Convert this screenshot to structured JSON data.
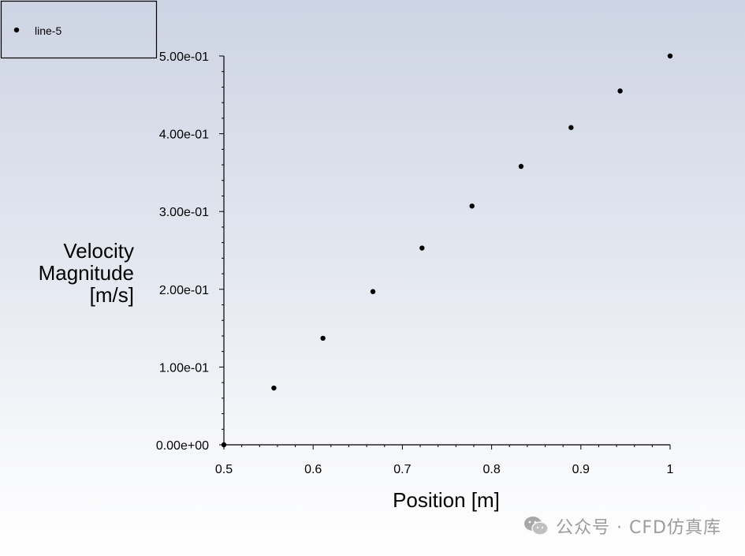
{
  "chart_data": {
    "type": "scatter",
    "title": "",
    "xlabel": "Position [m]",
    "ylabel": [
      "Velocity",
      "Magnitude",
      "[m/s]"
    ],
    "xlim": [
      0.5,
      1.0
    ],
    "ylim": [
      0.0,
      0.5
    ],
    "x_ticks": [
      0.5,
      0.6,
      0.7,
      0.8,
      0.9,
      1.0
    ],
    "x_tick_labels": [
      "0.5",
      "0.6",
      "0.7",
      "0.8",
      "0.9",
      "1"
    ],
    "y_ticks": [
      0.0,
      0.1,
      0.2,
      0.3,
      0.4,
      0.5
    ],
    "y_tick_labels": [
      "0.00e+00",
      "1.00e-01",
      "2.00e-01",
      "3.00e-01",
      "4.00e-01",
      "5.00e-01"
    ],
    "grid": false,
    "legend_position": "top-left",
    "series": [
      {
        "name": "line-5",
        "color": "#000000",
        "marker": "circle",
        "x": [
          0.5,
          0.556,
          0.611,
          0.667,
          0.722,
          0.778,
          0.833,
          0.889,
          0.944,
          1.0
        ],
        "y": [
          0.0,
          0.073,
          0.137,
          0.197,
          0.253,
          0.307,
          0.358,
          0.408,
          0.455,
          0.5
        ]
      }
    ]
  },
  "watermark": {
    "icon": "wechat-icon",
    "text": "公众号 · CFD仿真库"
  }
}
